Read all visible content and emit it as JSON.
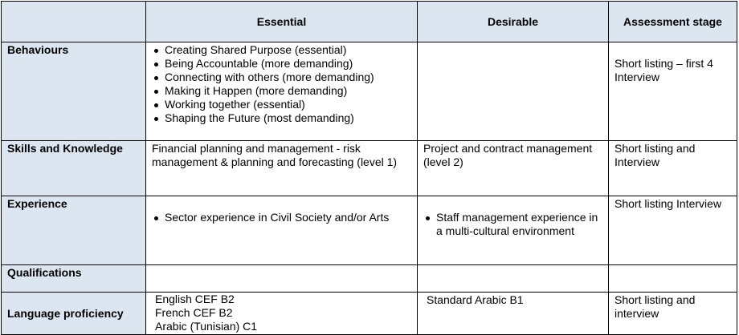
{
  "headers": [
    "",
    "Essential",
    "Desirable",
    "Assessment stage"
  ],
  "rows": [
    {
      "label": "Behaviours",
      "essential_list": [
        "Creating Shared Purpose (essential)",
        "Being Accountable  (more demanding)",
        "Connecting with others (more demanding)",
        "Making it Happen (more demanding)",
        "Working together (essential)",
        "Shaping the Future (most demanding)"
      ],
      "desirable": "",
      "assessment": "Short listing – first 4 Interview"
    },
    {
      "label": "Skills and Knowledge",
      "essential": "Financial planning and management - risk management & planning and forecasting (level 1)",
      "desirable": "Project and contract management (level 2)",
      "assessment": "Short listing and Interview"
    },
    {
      "label": "Experience",
      "essential_list": [
        "Sector experience in Civil  Society and/or Arts"
      ],
      "desirable_list": [
        "Staff management experience in a multi-cultural environment"
      ],
      "assessment": "Short listing Interview"
    },
    {
      "label": "Qualifications",
      "essential": "",
      "desirable": "",
      "assessment": ""
    },
    {
      "label": "Language proficiency",
      "essential_lines": [
        "English CEF B2",
        "French CEF B2",
        "Arabic (Tunisian) C1"
      ],
      "desirable": "Standard Arabic B1",
      "assessment": "Short listing and interview"
    }
  ],
  "colors": {
    "header_bg": "#dce6f1",
    "border": "#000000"
  }
}
